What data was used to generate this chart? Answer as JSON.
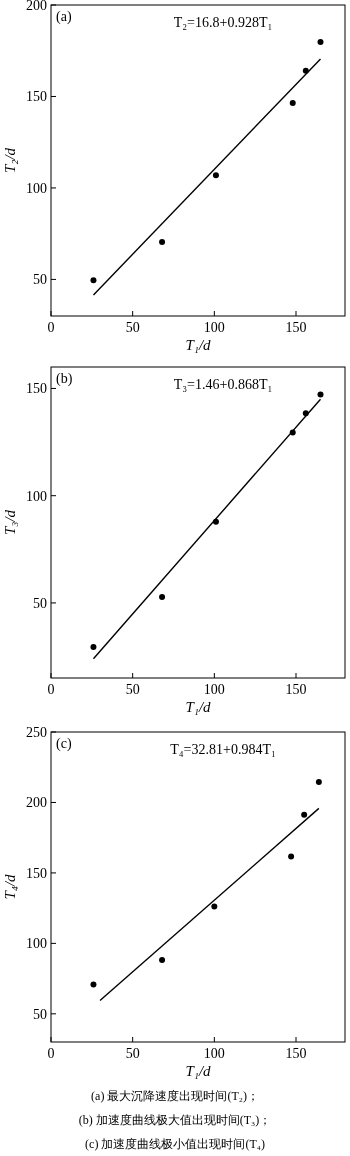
{
  "chart_data": [
    {
      "type": "scatter",
      "title": "(a)",
      "xlabel": "T₁/d",
      "ylabel": "T₂/d",
      "annotations": [
        "T₂=16.8+0.928T₁"
      ],
      "xlim": [
        0,
        180
      ],
      "xticks": [
        0,
        50,
        100,
        150
      ],
      "ylim": [
        30,
        200
      ],
      "yticks": [
        50,
        100,
        150,
        200
      ],
      "grid": false,
      "marker": "circle",
      "series": [
        {
          "type": "scatter",
          "color": "#000000",
          "x": [
            26,
            68,
            101,
            148,
            156,
            165
          ],
          "values": [
            49.5,
            70.5,
            107,
            146.4,
            164,
            179.8
          ]
        },
        {
          "type": "line",
          "color": "#000000",
          "marker": "none",
          "line_style": "solid",
          "x": [
            26,
            165
          ],
          "values": [
            41.5,
            170.5
          ]
        }
      ]
    },
    {
      "type": "scatter",
      "title": "(b)",
      "xlabel": "T₁/d",
      "ylabel": "T₃/d",
      "annotations": [
        "T₃=1.46+0.868T₁"
      ],
      "xlim": [
        0,
        180
      ],
      "xticks": [
        0,
        50,
        100,
        150
      ],
      "ylim": [
        15,
        160
      ],
      "yticks": [
        50,
        100,
        150
      ],
      "grid": false,
      "marker": "circle",
      "series": [
        {
          "type": "scatter",
          "color": "#000000",
          "x": [
            26,
            68,
            101,
            148,
            156,
            165
          ],
          "values": [
            29.5,
            52.8,
            87.9,
            129.5,
            138.4,
            147.2
          ]
        },
        {
          "type": "line",
          "color": "#000000",
          "marker": "none",
          "line_style": "solid",
          "x": [
            26,
            165
          ],
          "values": [
            24,
            145
          ]
        }
      ]
    },
    {
      "type": "scatter",
      "title": "(c)",
      "xlabel": "T₁/d",
      "ylabel": "T₄/d",
      "annotations": [
        "T₄=32.81+0.984T₁",
        "(a)  最大沉降速度出现时间(T₂)；",
        "(b)  加速度曲线极大值出现时间(T₃)；",
        "(c)  加速度曲线极小值出现时间(T₄)"
      ],
      "xlim": [
        0,
        180
      ],
      "xticks": [
        0,
        50,
        100,
        150
      ],
      "ylim": [
        30,
        250
      ],
      "yticks": [
        50,
        100,
        150,
        200,
        250
      ],
      "grid": false,
      "marker": "circle",
      "series": [
        {
          "type": "scatter",
          "color": "#000000",
          "x": [
            26,
            68,
            100,
            147,
            155,
            164
          ],
          "values": [
            70.8,
            88.2,
            126.2,
            161.6,
            191.3,
            214.6
          ]
        },
        {
          "type": "line",
          "color": "#000000",
          "marker": "none",
          "line_style": "solid",
          "x": [
            30,
            164
          ],
          "values": [
            59.4,
            195.8
          ]
        }
      ]
    }
  ]
}
